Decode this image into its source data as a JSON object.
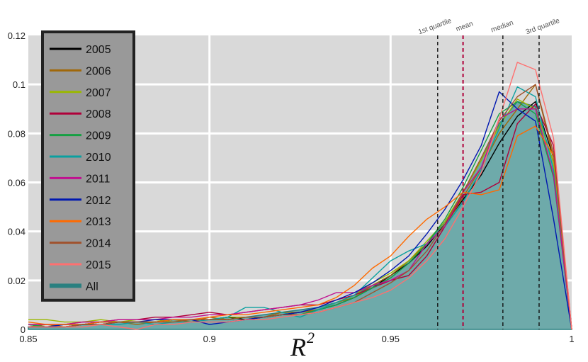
{
  "chart_data": {
    "type": "line",
    "xlabel": "R",
    "xlabel_sup": "2",
    "xlim": [
      0.85,
      1.0
    ],
    "ylim": [
      0,
      0.12
    ],
    "x_ticks": [
      {
        "value": 0.85,
        "label": "0.85"
      },
      {
        "value": 0.9,
        "label": "0.9"
      },
      {
        "value": 0.95,
        "label": "0.95"
      },
      {
        "value": 1.0,
        "label": "1"
      }
    ],
    "y_ticks": [
      {
        "value": 0,
        "label": "0"
      },
      {
        "value": 0.02,
        "label": "0.02"
      },
      {
        "value": 0.04,
        "label": "0.04"
      },
      {
        "value": 0.06,
        "label": "0.06"
      },
      {
        "value": 0.08,
        "label": "0.08"
      },
      {
        "value": 0.1,
        "label": "0.1"
      },
      {
        "value": 0.12,
        "label": "0.12"
      }
    ],
    "grid": true,
    "legend_position": "top-left",
    "vertical_lines": [
      {
        "x": 0.963,
        "label": "1st quartile",
        "color": "#111111",
        "dash": true
      },
      {
        "x": 0.97,
        "label": "mean",
        "color": "#b0003a",
        "dash": true
      },
      {
        "x": 0.981,
        "label": "median",
        "color": "#111111",
        "dash": true
      },
      {
        "x": 0.991,
        "label": "3rd quartile",
        "color": "#111111",
        "dash": true
      }
    ],
    "x": [
      0.85,
      0.855,
      0.86,
      0.865,
      0.87,
      0.875,
      0.88,
      0.885,
      0.89,
      0.895,
      0.9,
      0.905,
      0.91,
      0.915,
      0.92,
      0.925,
      0.93,
      0.935,
      0.94,
      0.945,
      0.95,
      0.955,
      0.96,
      0.965,
      0.97,
      0.975,
      0.98,
      0.985,
      0.99,
      0.995,
      1.0
    ],
    "series": [
      {
        "name": "2005",
        "color": "#000000",
        "values": [
          0.002,
          0.001,
          0.001,
          0.002,
          0.002,
          0.003,
          0.003,
          0.003,
          0.004,
          0.004,
          0.004,
          0.005,
          0.004,
          0.005,
          0.006,
          0.007,
          0.008,
          0.01,
          0.013,
          0.017,
          0.022,
          0.027,
          0.034,
          0.043,
          0.053,
          0.063,
          0.076,
          0.087,
          0.093,
          0.07,
          0.0
        ]
      },
      {
        "name": "2006",
        "color": "#a0680a",
        "values": [
          0.001,
          0.002,
          0.001,
          0.002,
          0.003,
          0.003,
          0.002,
          0.003,
          0.004,
          0.003,
          0.005,
          0.004,
          0.005,
          0.005,
          0.007,
          0.007,
          0.008,
          0.011,
          0.013,
          0.018,
          0.022,
          0.028,
          0.035,
          0.042,
          0.054,
          0.066,
          0.08,
          0.09,
          0.1,
          0.07,
          0.0
        ]
      },
      {
        "name": "2007",
        "color": "#9ab800",
        "values": [
          0.004,
          0.004,
          0.003,
          0.003,
          0.004,
          0.003,
          0.004,
          0.004,
          0.003,
          0.004,
          0.004,
          0.005,
          0.005,
          0.005,
          0.006,
          0.006,
          0.008,
          0.011,
          0.014,
          0.019,
          0.023,
          0.028,
          0.036,
          0.044,
          0.056,
          0.069,
          0.083,
          0.094,
          0.09,
          0.068,
          0.0
        ]
      },
      {
        "name": "2008",
        "color": "#b0003a",
        "values": [
          0.002,
          0.002,
          0.002,
          0.003,
          0.003,
          0.004,
          0.004,
          0.005,
          0.005,
          0.006,
          0.007,
          0.006,
          0.007,
          0.008,
          0.009,
          0.01,
          0.01,
          0.012,
          0.014,
          0.017,
          0.02,
          0.022,
          0.03,
          0.042,
          0.055,
          0.056,
          0.06,
          0.084,
          0.092,
          0.075,
          0.0
        ]
      },
      {
        "name": "2009",
        "color": "#16a043",
        "values": [
          0.002,
          0.001,
          0.002,
          0.002,
          0.003,
          0.003,
          0.003,
          0.003,
          0.004,
          0.004,
          0.004,
          0.004,
          0.005,
          0.005,
          0.006,
          0.006,
          0.008,
          0.01,
          0.013,
          0.017,
          0.021,
          0.027,
          0.035,
          0.045,
          0.058,
          0.073,
          0.088,
          0.093,
          0.088,
          0.062,
          0.0
        ]
      },
      {
        "name": "2010",
        "color": "#0aa0a0",
        "values": [
          0.001,
          0.001,
          0.001,
          0.002,
          0.002,
          0.002,
          0.003,
          0.002,
          0.003,
          0.003,
          0.004,
          0.005,
          0.009,
          0.009,
          0.007,
          0.005,
          0.008,
          0.011,
          0.014,
          0.021,
          0.028,
          0.032,
          0.035,
          0.042,
          0.052,
          0.065,
          0.082,
          0.099,
          0.095,
          0.065,
          0.0
        ]
      },
      {
        "name": "2011",
        "color": "#c01090",
        "values": [
          0.002,
          0.002,
          0.002,
          0.003,
          0.003,
          0.004,
          0.004,
          0.004,
          0.005,
          0.005,
          0.006,
          0.006,
          0.007,
          0.008,
          0.009,
          0.01,
          0.012,
          0.015,
          0.015,
          0.018,
          0.02,
          0.024,
          0.035,
          0.042,
          0.056,
          0.066,
          0.086,
          0.09,
          0.09,
          0.063,
          0.0
        ]
      },
      {
        "name": "2012",
        "color": "#0018b0",
        "values": [
          0.001,
          0.001,
          0.002,
          0.002,
          0.003,
          0.003,
          0.003,
          0.004,
          0.004,
          0.004,
          0.002,
          0.003,
          0.004,
          0.005,
          0.006,
          0.007,
          0.009,
          0.012,
          0.015,
          0.019,
          0.024,
          0.03,
          0.039,
          0.049,
          0.061,
          0.075,
          0.097,
          0.09,
          0.085,
          0.045,
          0.0
        ]
      },
      {
        "name": "2013",
        "color": "#ff6a00",
        "values": [
          0.003,
          0.002,
          0.002,
          0.002,
          0.003,
          0.003,
          0.003,
          0.003,
          0.004,
          0.004,
          0.005,
          0.006,
          0.006,
          0.007,
          0.008,
          0.009,
          0.01,
          0.013,
          0.018,
          0.025,
          0.03,
          0.038,
          0.045,
          0.05,
          0.056,
          0.055,
          0.057,
          0.079,
          0.083,
          0.071,
          0.0
        ]
      },
      {
        "name": "2014",
        "color": "#a0522d",
        "values": [
          0.001,
          0.001,
          0.001,
          0.002,
          0.002,
          0.003,
          0.003,
          0.003,
          0.003,
          0.004,
          0.004,
          0.004,
          0.005,
          0.005,
          0.006,
          0.006,
          0.007,
          0.009,
          0.011,
          0.015,
          0.019,
          0.024,
          0.032,
          0.043,
          0.056,
          0.07,
          0.085,
          0.095,
          0.1,
          0.072,
          0.0
        ]
      },
      {
        "name": "2015",
        "color": "#ff7070",
        "values": [
          0.001,
          0.001,
          0.001,
          0.001,
          0.002,
          0.001,
          0.0,
          0.002,
          0.002,
          0.003,
          0.003,
          0.003,
          0.004,
          0.004,
          0.005,
          0.006,
          0.007,
          0.009,
          0.011,
          0.013,
          0.016,
          0.021,
          0.028,
          0.037,
          0.05,
          0.064,
          0.086,
          0.109,
          0.106,
          0.078,
          0.0
        ]
      },
      {
        "name": "All",
        "color": "#2a8080",
        "fill": "#6eaaaa",
        "values": [
          0.001,
          0.001,
          0.001,
          0.002,
          0.002,
          0.003,
          0.003,
          0.003,
          0.004,
          0.004,
          0.004,
          0.005,
          0.005,
          0.006,
          0.007,
          0.008,
          0.009,
          0.011,
          0.014,
          0.018,
          0.022,
          0.028,
          0.035,
          0.044,
          0.056,
          0.069,
          0.084,
          0.093,
          0.091,
          0.068,
          0.0
        ]
      }
    ]
  }
}
